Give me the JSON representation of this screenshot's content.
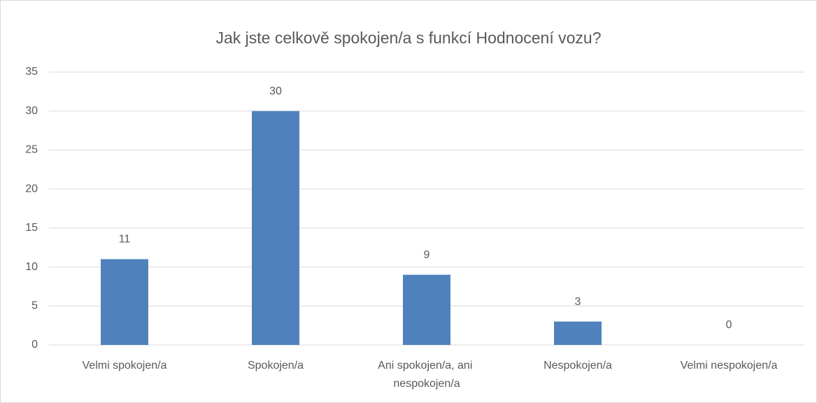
{
  "chart_data": {
    "type": "bar",
    "title": "Jak jste celkově spokojen/a s funkcí Hodnocení vozu?",
    "categories": [
      "Velmi spokojen/a",
      "Spokojen/a",
      "Ani spokojen/a, ani nespokojen/a",
      "Nespokojen/a",
      "Velmi nespokojen/a"
    ],
    "values": [
      11,
      30,
      9,
      3,
      0
    ],
    "color": "#4f81bd",
    "ylim": [
      0,
      35
    ],
    "yticks": [
      0,
      5,
      10,
      15,
      20,
      25,
      30,
      35
    ],
    "grid": true
  }
}
